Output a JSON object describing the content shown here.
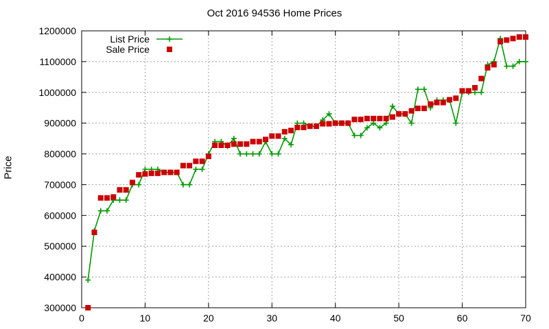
{
  "chart_data": {
    "type": "line",
    "title": "Oct 2016 94536 Home Prices",
    "xlabel": "",
    "ylabel": "Price",
    "xlim": [
      0,
      70
    ],
    "ylim": [
      300000,
      1200000
    ],
    "xticks": [
      0,
      10,
      20,
      30,
      40,
      50,
      60,
      70
    ],
    "yticks": [
      300000,
      400000,
      500000,
      600000,
      700000,
      800000,
      900000,
      1000000,
      1100000,
      1200000
    ],
    "grid": true,
    "legend_position": "top-left",
    "series": [
      {
        "name": "List Price",
        "style": "line-with-plus-markers",
        "color": "#009900",
        "x": [
          1,
          2,
          3,
          4,
          5,
          6,
          7,
          8,
          9,
          10,
          11,
          12,
          13,
          14,
          15,
          16,
          17,
          18,
          19,
          20,
          21,
          22,
          23,
          24,
          25,
          26,
          27,
          28,
          29,
          30,
          31,
          32,
          33,
          34,
          35,
          36,
          37,
          38,
          39,
          40,
          41,
          42,
          43,
          44,
          45,
          46,
          47,
          48,
          49,
          50,
          51,
          52,
          53,
          54,
          55,
          56,
          57,
          58,
          59,
          60,
          61,
          62,
          63,
          64,
          65,
          66,
          67,
          68,
          69,
          70
        ],
        "values": [
          390000,
          550000,
          615000,
          615000,
          650000,
          650000,
          650000,
          700000,
          700000,
          750000,
          750000,
          750000,
          740000,
          740000,
          740000,
          700000,
          700000,
          750000,
          750000,
          800000,
          840000,
          840000,
          825000,
          850000,
          800000,
          800000,
          800000,
          800000,
          840000,
          800000,
          800000,
          850000,
          830000,
          900000,
          900000,
          890000,
          890000,
          910000,
          930000,
          900000,
          900000,
          900000,
          860000,
          860000,
          885000,
          900000,
          885000,
          900000,
          955000,
          930000,
          930000,
          900000,
          1010000,
          1010000,
          950000,
          975000,
          975000,
          975000,
          900000,
          1000000,
          1000000,
          1000000,
          1000000,
          1090000,
          1100000,
          1175000,
          1085000,
          1085000,
          1100000,
          1100000
        ]
      },
      {
        "name": "Sale Price",
        "style": "square-markers",
        "color": "#cc0000",
        "x": [
          1,
          2,
          3,
          4,
          5,
          6,
          7,
          8,
          9,
          10,
          11,
          12,
          13,
          14,
          15,
          16,
          17,
          18,
          19,
          20,
          21,
          22,
          23,
          24,
          25,
          26,
          27,
          28,
          29,
          30,
          31,
          32,
          33,
          34,
          35,
          36,
          37,
          38,
          39,
          40,
          41,
          42,
          43,
          44,
          45,
          46,
          47,
          48,
          49,
          50,
          51,
          52,
          53,
          54,
          55,
          56,
          57,
          58,
          59,
          60,
          61,
          62,
          63,
          64,
          65,
          66,
          67,
          68,
          69,
          70
        ],
        "values": [
          300000,
          545000,
          657000,
          657000,
          660000,
          683000,
          683000,
          707000,
          732000,
          735000,
          737000,
          737000,
          740000,
          740000,
          740000,
          762000,
          762000,
          776000,
          776000,
          792000,
          828000,
          828000,
          828000,
          832000,
          832000,
          832000,
          840000,
          840000,
          847000,
          858000,
          858000,
          872000,
          876000,
          886000,
          886000,
          890000,
          890000,
          898000,
          898000,
          900000,
          900000,
          900000,
          912000,
          912000,
          915000,
          915000,
          915000,
          915000,
          920000,
          930000,
          930000,
          940000,
          948000,
          948000,
          962000,
          967000,
          967000,
          976000,
          981000,
          1005000,
          1005000,
          1015000,
          1045000,
          1080000,
          1090000,
          1165000,
          1170000,
          1175000,
          1180000,
          1180000
        ]
      }
    ]
  }
}
